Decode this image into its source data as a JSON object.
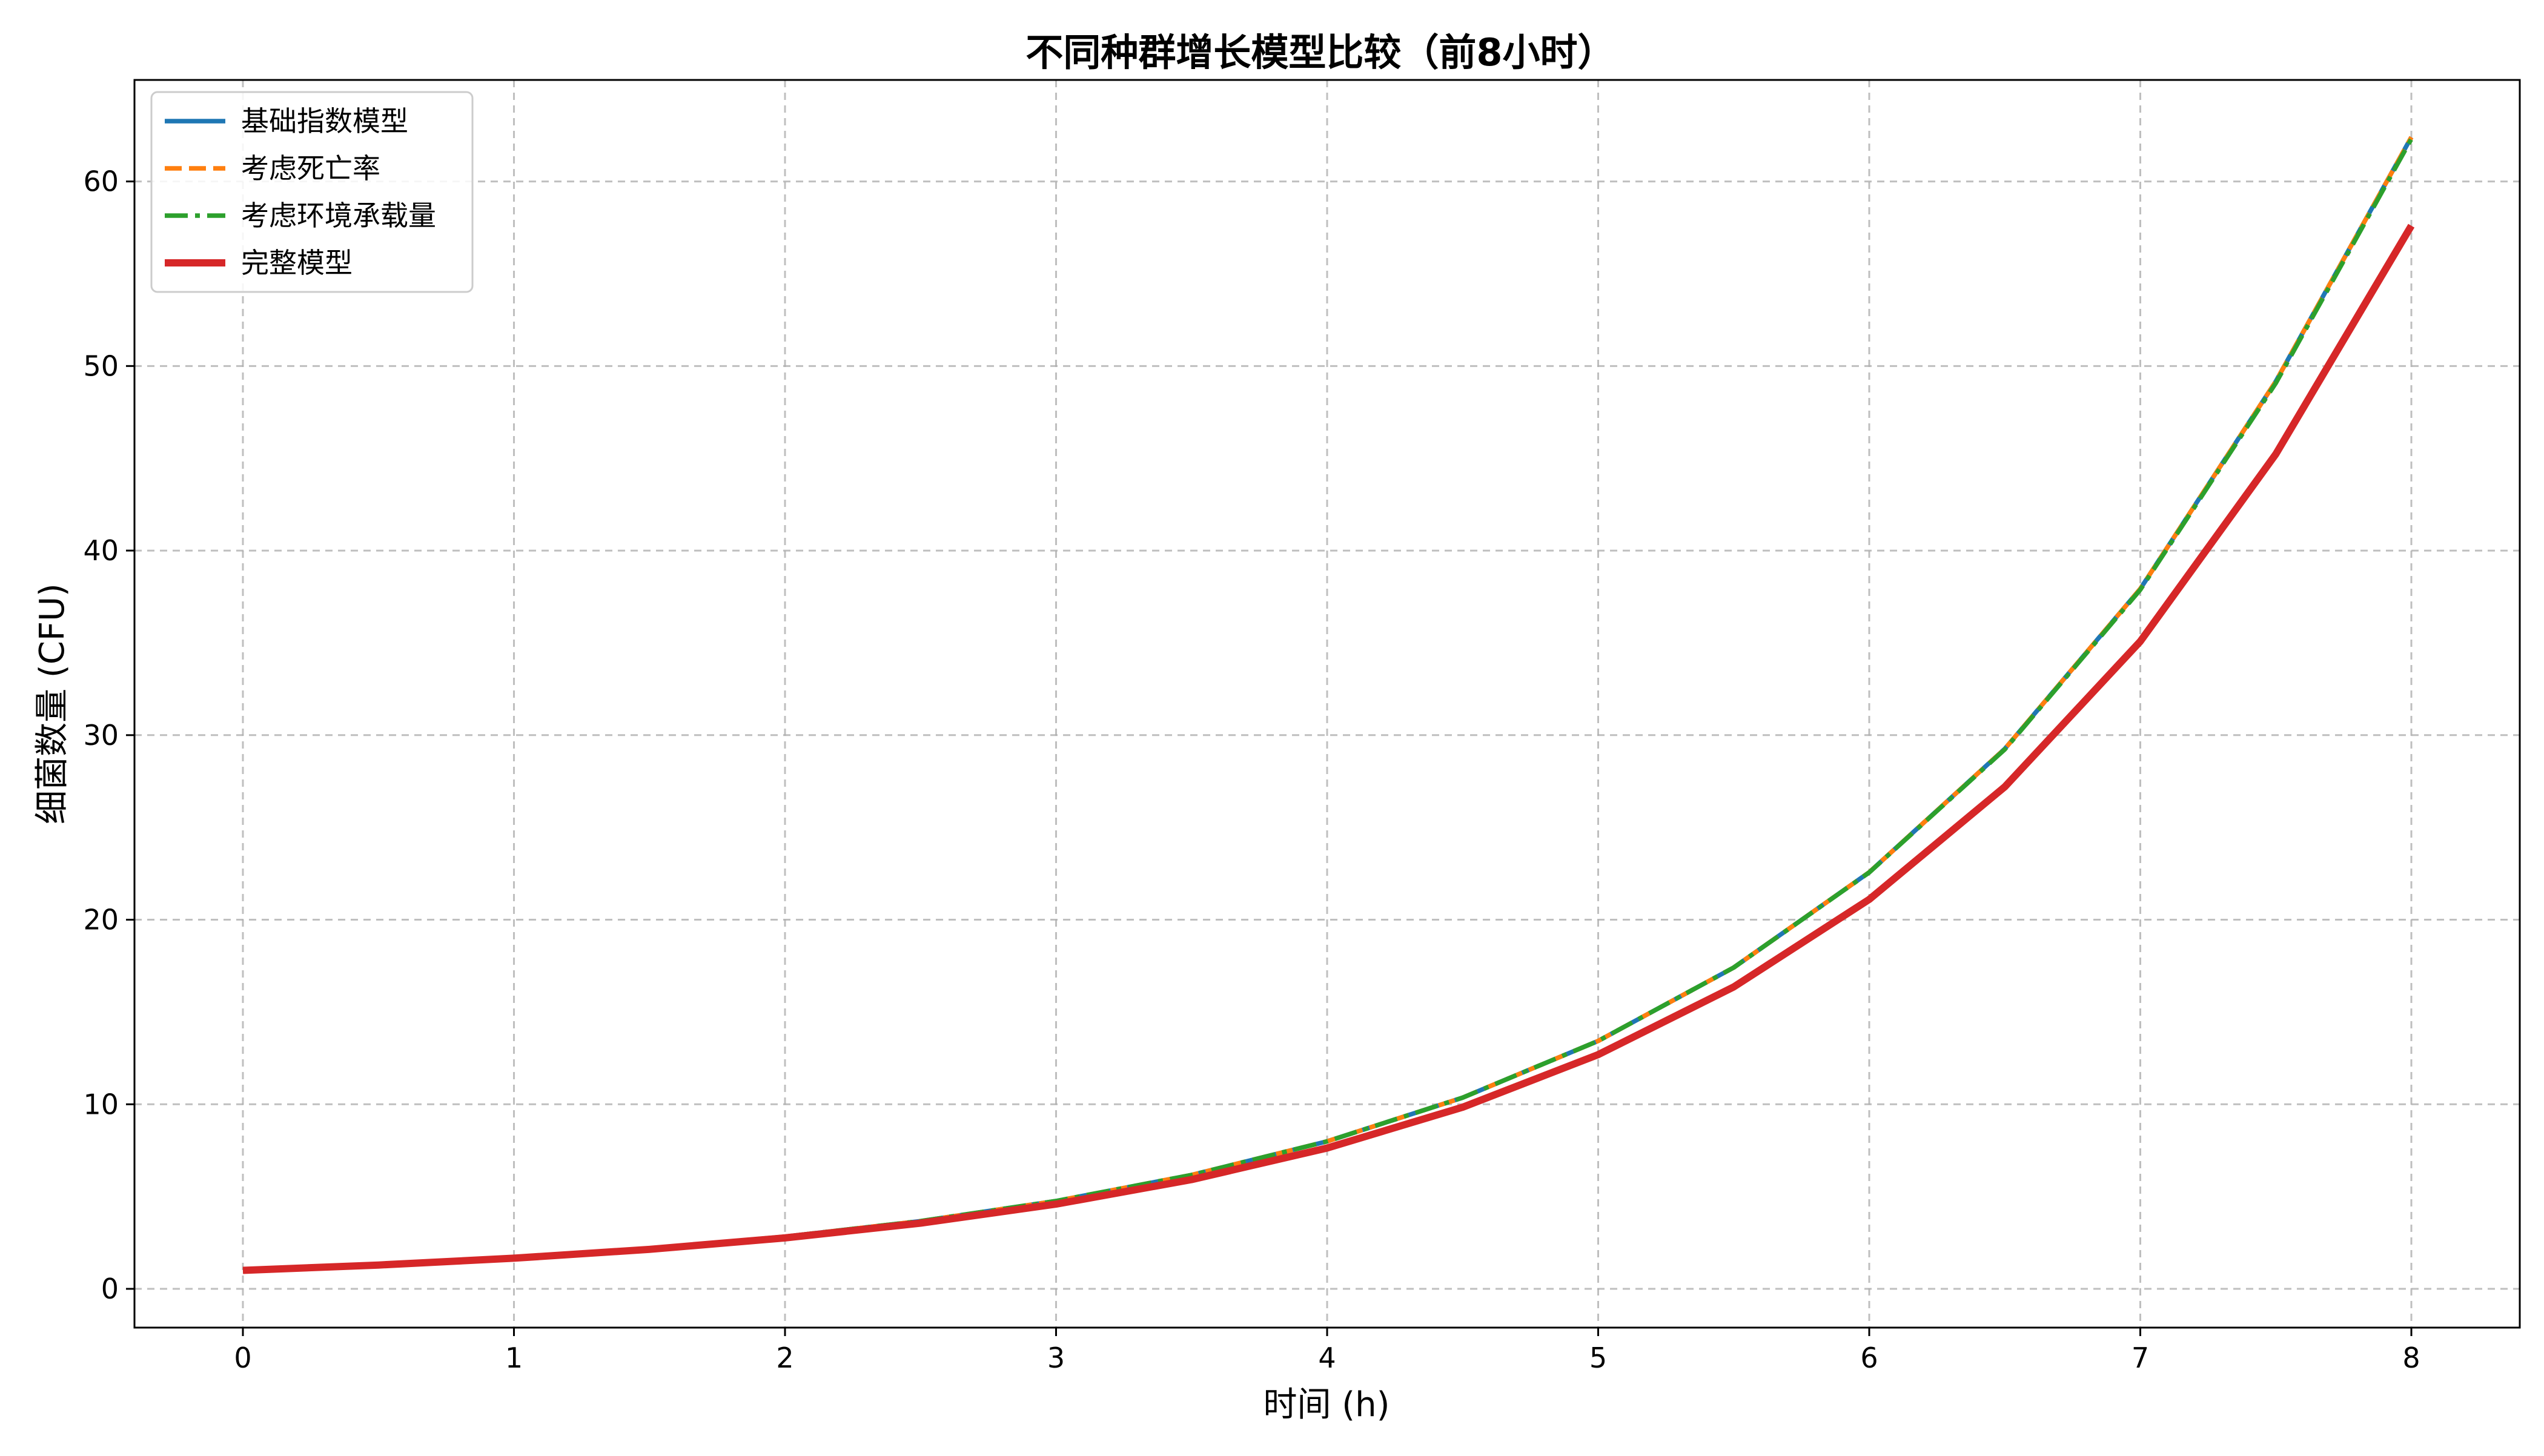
{
  "chart_data": {
    "type": "line",
    "title": "不同种群增长模型比较（前8小时）",
    "xlabel": "时间 (h)",
    "ylabel": "细菌数量 (CFU)",
    "xlim": [
      -0.4,
      8.4
    ],
    "ylim": [
      -2.1,
      65.5
    ],
    "xticks": [
      0,
      1,
      2,
      3,
      4,
      5,
      6,
      7,
      8
    ],
    "yticks": [
      0,
      10,
      20,
      30,
      40,
      50,
      60
    ],
    "grid": true,
    "legend_position": "top-left",
    "x": [
      0,
      0.5,
      1,
      1.5,
      2,
      2.5,
      3,
      3.5,
      4,
      4.5,
      5,
      5.5,
      6,
      6.5,
      7,
      7.5,
      8
    ],
    "series": [
      {
        "name": "基础指数模型",
        "color": "#1f77b4",
        "style": "solid",
        "values": [
          1.0,
          1.3,
          1.68,
          2.18,
          2.83,
          3.67,
          4.76,
          6.17,
          7.99,
          10.36,
          13.43,
          17.41,
          22.57,
          29.26,
          37.93,
          49.17,
          62.4
        ]
      },
      {
        "name": "考虑死亡率",
        "color": "#ff7f0e",
        "style": "dashed",
        "values": [
          1.0,
          1.3,
          1.68,
          2.18,
          2.83,
          3.67,
          4.76,
          6.17,
          7.99,
          10.36,
          13.43,
          17.41,
          22.57,
          29.26,
          37.93,
          49.17,
          62.4
        ]
      },
      {
        "name": "考虑环境承载量",
        "color": "#2ca02c",
        "style": "dashdot",
        "values": [
          1.0,
          1.3,
          1.68,
          2.18,
          2.83,
          3.67,
          4.76,
          6.17,
          7.99,
          10.36,
          13.43,
          17.41,
          22.56,
          29.23,
          37.88,
          49.08,
          62.3
        ]
      },
      {
        "name": "完整模型",
        "color": "#d62728",
        "style": "solid-thick",
        "values": [
          1.0,
          1.29,
          1.66,
          2.14,
          2.76,
          3.56,
          4.59,
          5.92,
          7.63,
          9.84,
          12.69,
          16.36,
          21.1,
          27.2,
          35.08,
          45.23,
          57.6
        ]
      }
    ]
  }
}
